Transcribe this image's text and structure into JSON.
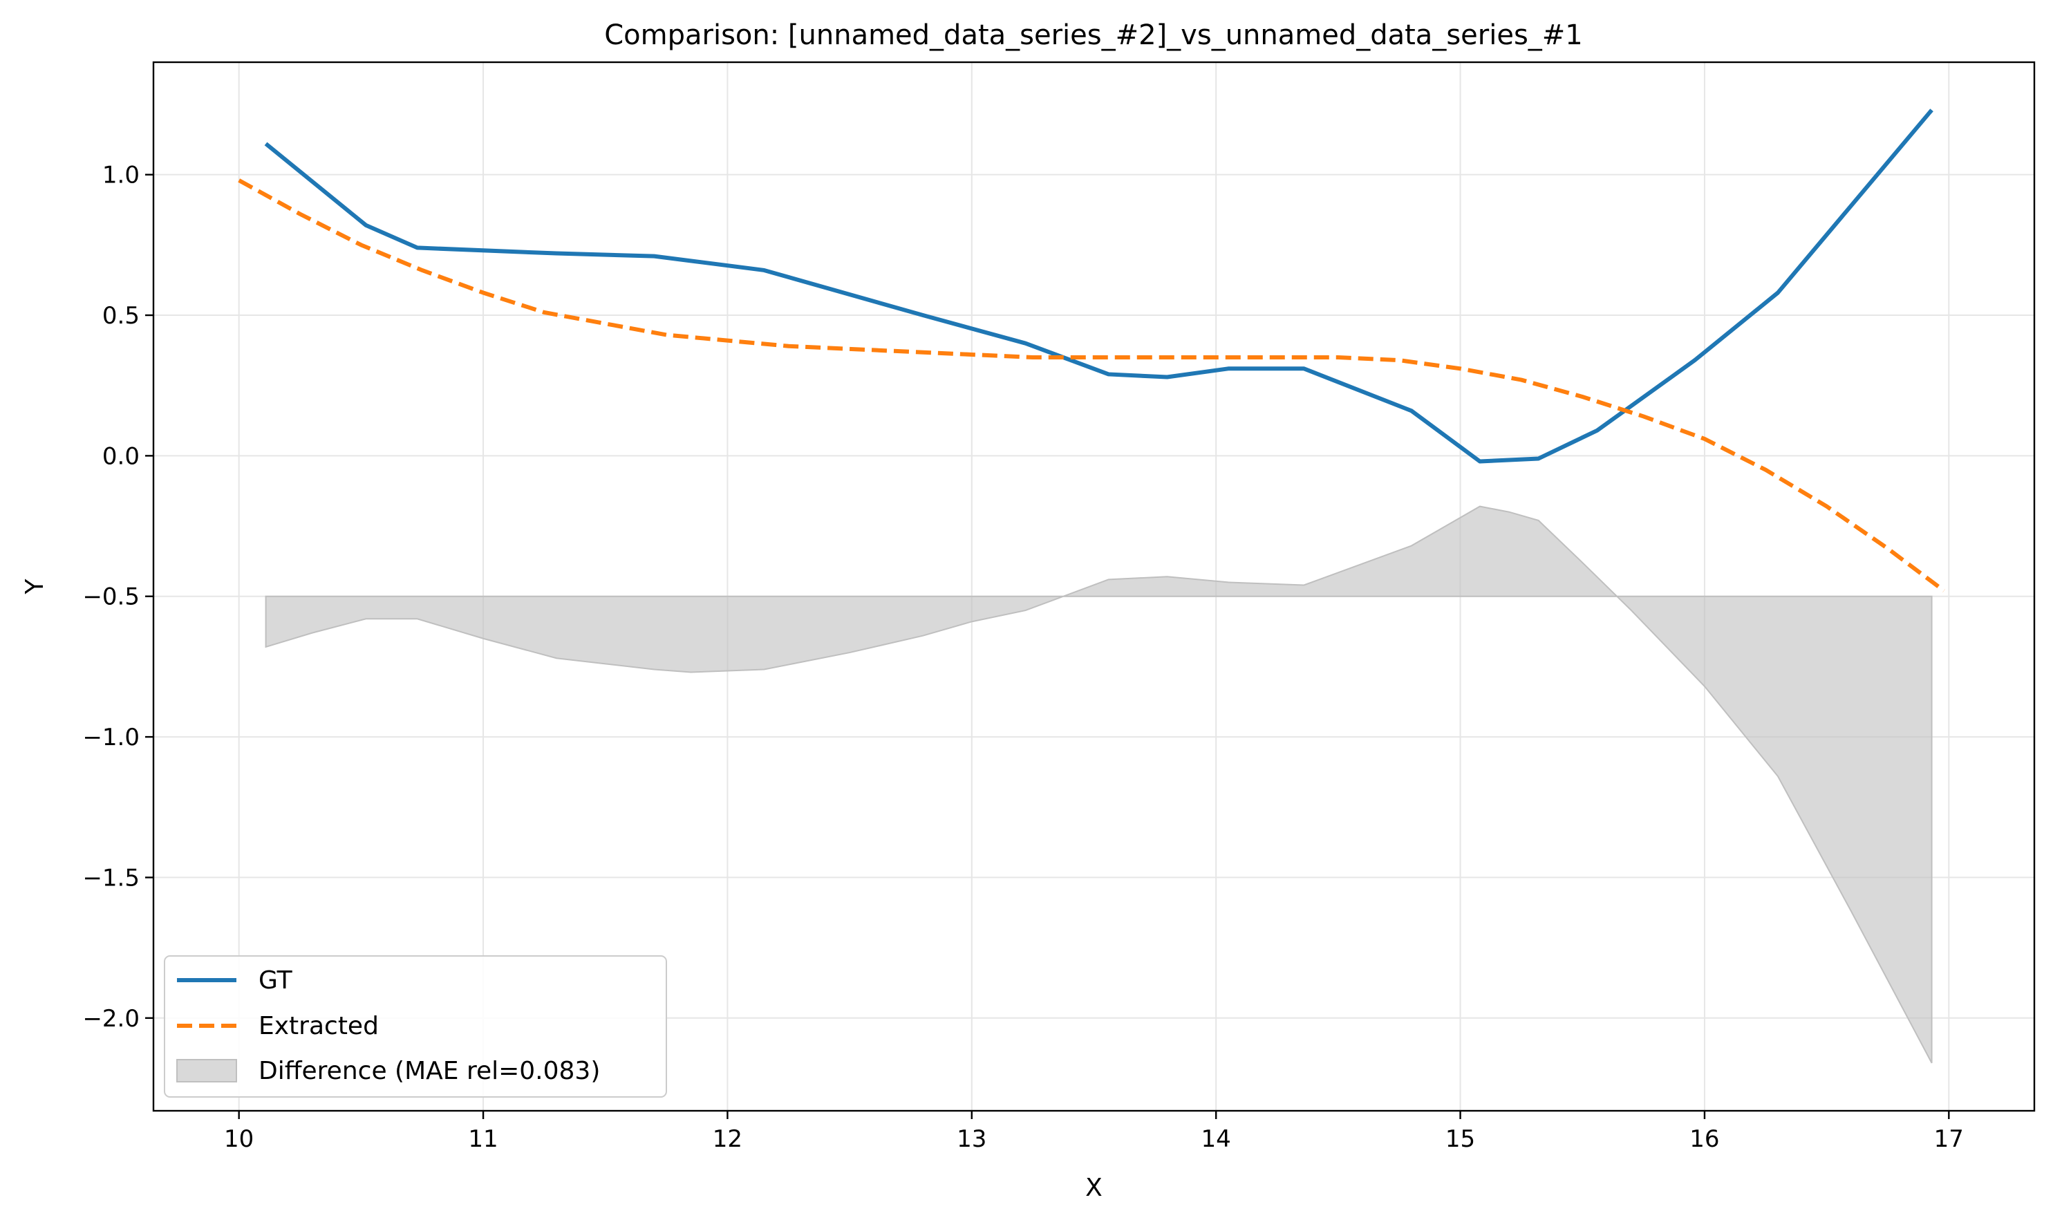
{
  "chart_data": {
    "type": "line",
    "title": "Comparison: [unnamed_data_series_#2]_vs_unnamed_data_series_#1",
    "xlabel": "X",
    "ylabel": "Y",
    "xlim": [
      9.65,
      17.35
    ],
    "ylim": [
      -2.33,
      1.4
    ],
    "grid": true,
    "legend_position": "lower-left",
    "x_ticks": [
      10,
      11,
      12,
      13,
      14,
      15,
      16,
      17
    ],
    "x_tick_labels": [
      "10",
      "11",
      "12",
      "13",
      "14",
      "15",
      "16",
      "17"
    ],
    "y_ticks": [
      1.0,
      0.5,
      0.0,
      -0.5,
      -1.0,
      -1.5,
      -2.0
    ],
    "y_tick_labels": [
      "1.0",
      "0.5",
      "0.0",
      "−0.5",
      "−1.0",
      "−1.5",
      "−2.0"
    ],
    "difference_baseline": -0.5,
    "series": [
      {
        "name": "GT",
        "color": "#1f77b4",
        "style": "solid",
        "x": [
          10.11,
          10.52,
          10.73,
          11.3,
          11.7,
          12.15,
          12.8,
          13.22,
          13.56,
          13.8,
          14.05,
          14.36,
          14.8,
          15.08,
          15.32,
          15.56,
          15.96,
          16.3,
          16.93
        ],
        "y": [
          1.11,
          0.82,
          0.74,
          0.72,
          0.71,
          0.66,
          0.5,
          0.4,
          0.29,
          0.28,
          0.31,
          0.31,
          0.16,
          -0.02,
          -0.01,
          0.09,
          0.34,
          0.58,
          1.23
        ]
      },
      {
        "name": "Extracted",
        "color": "#ff7f0e",
        "style": "dashed",
        "x": [
          10.0,
          10.25,
          10.5,
          10.75,
          11.0,
          11.25,
          11.5,
          11.75,
          12.0,
          12.25,
          12.5,
          12.75,
          13.0,
          13.25,
          13.5,
          13.75,
          14.0,
          14.25,
          14.5,
          14.75,
          15.0,
          15.25,
          15.5,
          15.75,
          16.0,
          16.25,
          16.5,
          16.75,
          16.98
        ],
        "y": [
          0.98,
          0.86,
          0.75,
          0.66,
          0.58,
          0.51,
          0.47,
          0.43,
          0.41,
          0.39,
          0.38,
          0.37,
          0.36,
          0.35,
          0.35,
          0.35,
          0.35,
          0.35,
          0.35,
          0.34,
          0.31,
          0.27,
          0.21,
          0.14,
          0.06,
          -0.05,
          -0.18,
          -0.33,
          -0.48
        ]
      },
      {
        "name": "Difference (MAE rel=0.083)",
        "color": "#bfbfbf",
        "style": "fill",
        "x": [
          10.11,
          10.3,
          10.52,
          10.73,
          11.0,
          11.3,
          11.5,
          11.7,
          11.85,
          12.15,
          12.5,
          12.8,
          13.0,
          13.22,
          13.56,
          13.8,
          14.05,
          14.36,
          14.8,
          15.08,
          15.2,
          15.32,
          15.5,
          15.7,
          16.0,
          16.3,
          16.6,
          16.93
        ],
        "y": [
          -0.68,
          -0.63,
          -0.58,
          -0.58,
          -0.65,
          -0.72,
          -0.74,
          -0.76,
          -0.77,
          -0.76,
          -0.7,
          -0.64,
          -0.59,
          -0.55,
          -0.44,
          -0.43,
          -0.45,
          -0.46,
          -0.32,
          -0.18,
          -0.2,
          -0.23,
          -0.38,
          -0.55,
          -0.82,
          -1.14,
          -1.62,
          -2.16
        ]
      }
    ]
  }
}
